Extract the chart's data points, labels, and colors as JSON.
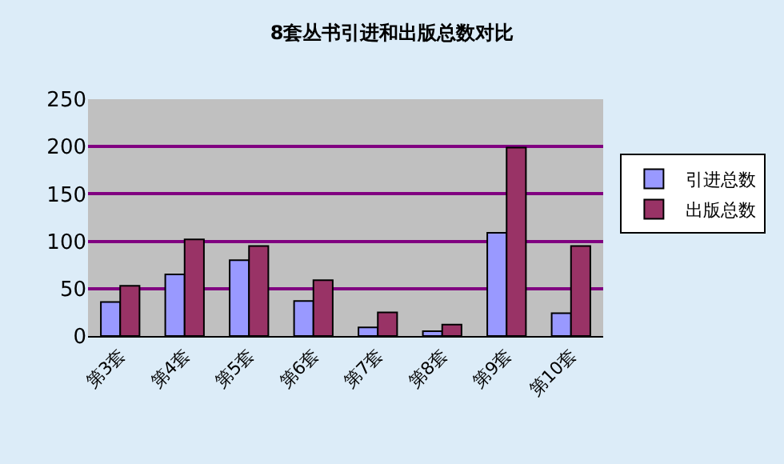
{
  "chart_data": {
    "type": "bar",
    "title": "8套丛书引进和出版总数对比",
    "categories": [
      "第3套",
      "第4套",
      "第5套",
      "第6套",
      "第7套",
      "第8套",
      "第9套",
      "第10套"
    ],
    "series": [
      {
        "name": "引进总数",
        "color": "#9999ff",
        "values": [
          36,
          65,
          80,
          37,
          9,
          5,
          109,
          24
        ]
      },
      {
        "name": "出版总数",
        "color": "#993366",
        "values": [
          53,
          102,
          95,
          59,
          25,
          12,
          199,
          95
        ]
      }
    ],
    "ylim": [
      0,
      250
    ],
    "yticks": [
      0,
      50,
      100,
      150,
      200,
      250
    ],
    "grid": "y",
    "legend": "right"
  }
}
